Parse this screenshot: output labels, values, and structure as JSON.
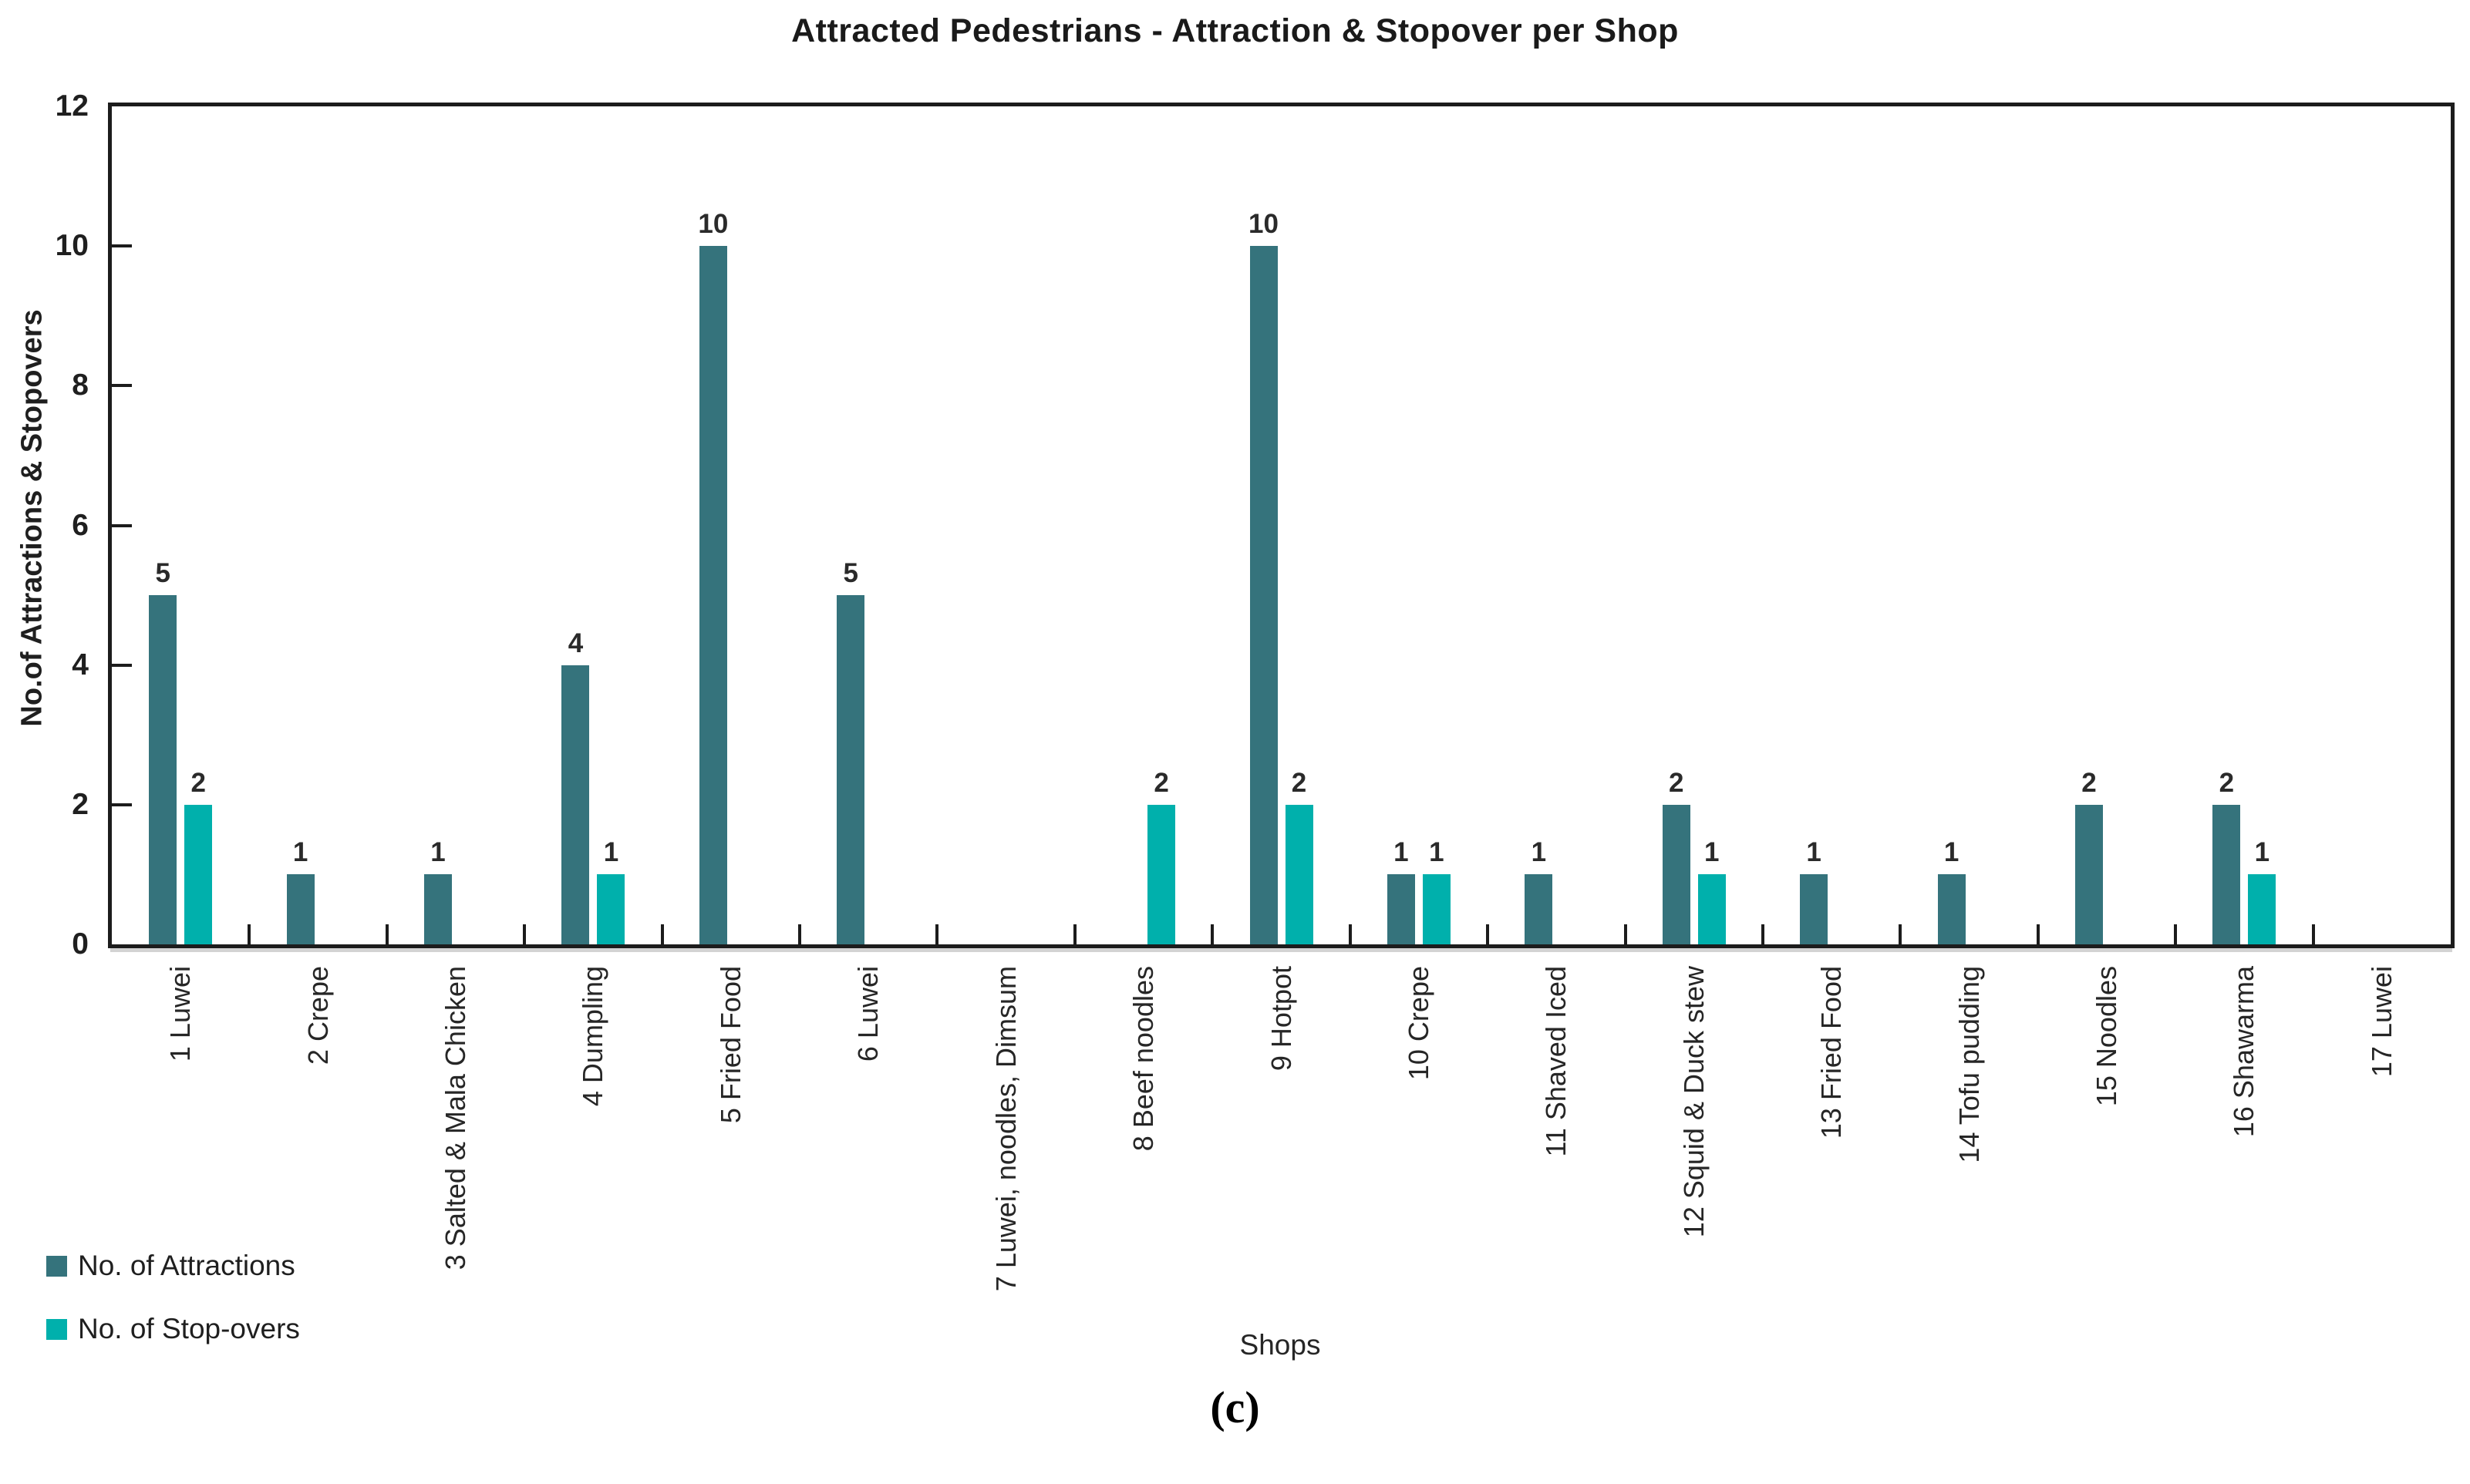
{
  "chart_data": {
    "type": "bar",
    "title": "Attracted Pedestrians - Attraction & Stopover per Shop",
    "xlabel": "Shops",
    "ylabel": "No.of Attractions & Stopovers",
    "caption": "(c)",
    "ylim": [
      0,
      12
    ],
    "yticks": [
      0,
      2,
      4,
      6,
      8,
      10,
      12
    ],
    "grid": false,
    "legend_position": "bottom-left",
    "bar_value_labels": "shown above non-zero bars",
    "categories": [
      "1 Luwei",
      "2 Crepe",
      "3 Salted & Mala Chicken",
      "4 Dumpling",
      "5 Fried Food",
      "6 Luwei",
      "7 Luwei, noodles, Dimsum",
      "8 Beef noodles",
      "9 Hotpot",
      "10  Crepe",
      "11 Shaved Iced",
      "12 Squid & Duck stew",
      "13 Fried Food",
      "14 Tofu pudding",
      "15 Noodles",
      "16 Shawarma",
      "17 Luwei"
    ],
    "series": [
      {
        "name": "No. of Attractions",
        "color": "#35737C",
        "values": [
          5,
          1,
          1,
          4,
          10,
          5,
          0,
          0,
          10,
          1,
          1,
          2,
          1,
          1,
          2,
          2,
          0
        ]
      },
      {
        "name": "No. of Stop-overs",
        "color": "#00B0AC",
        "values": [
          2,
          0,
          0,
          1,
          0,
          0,
          0,
          2,
          2,
          1,
          0,
          1,
          0,
          0,
          0,
          1,
          0
        ]
      }
    ]
  }
}
